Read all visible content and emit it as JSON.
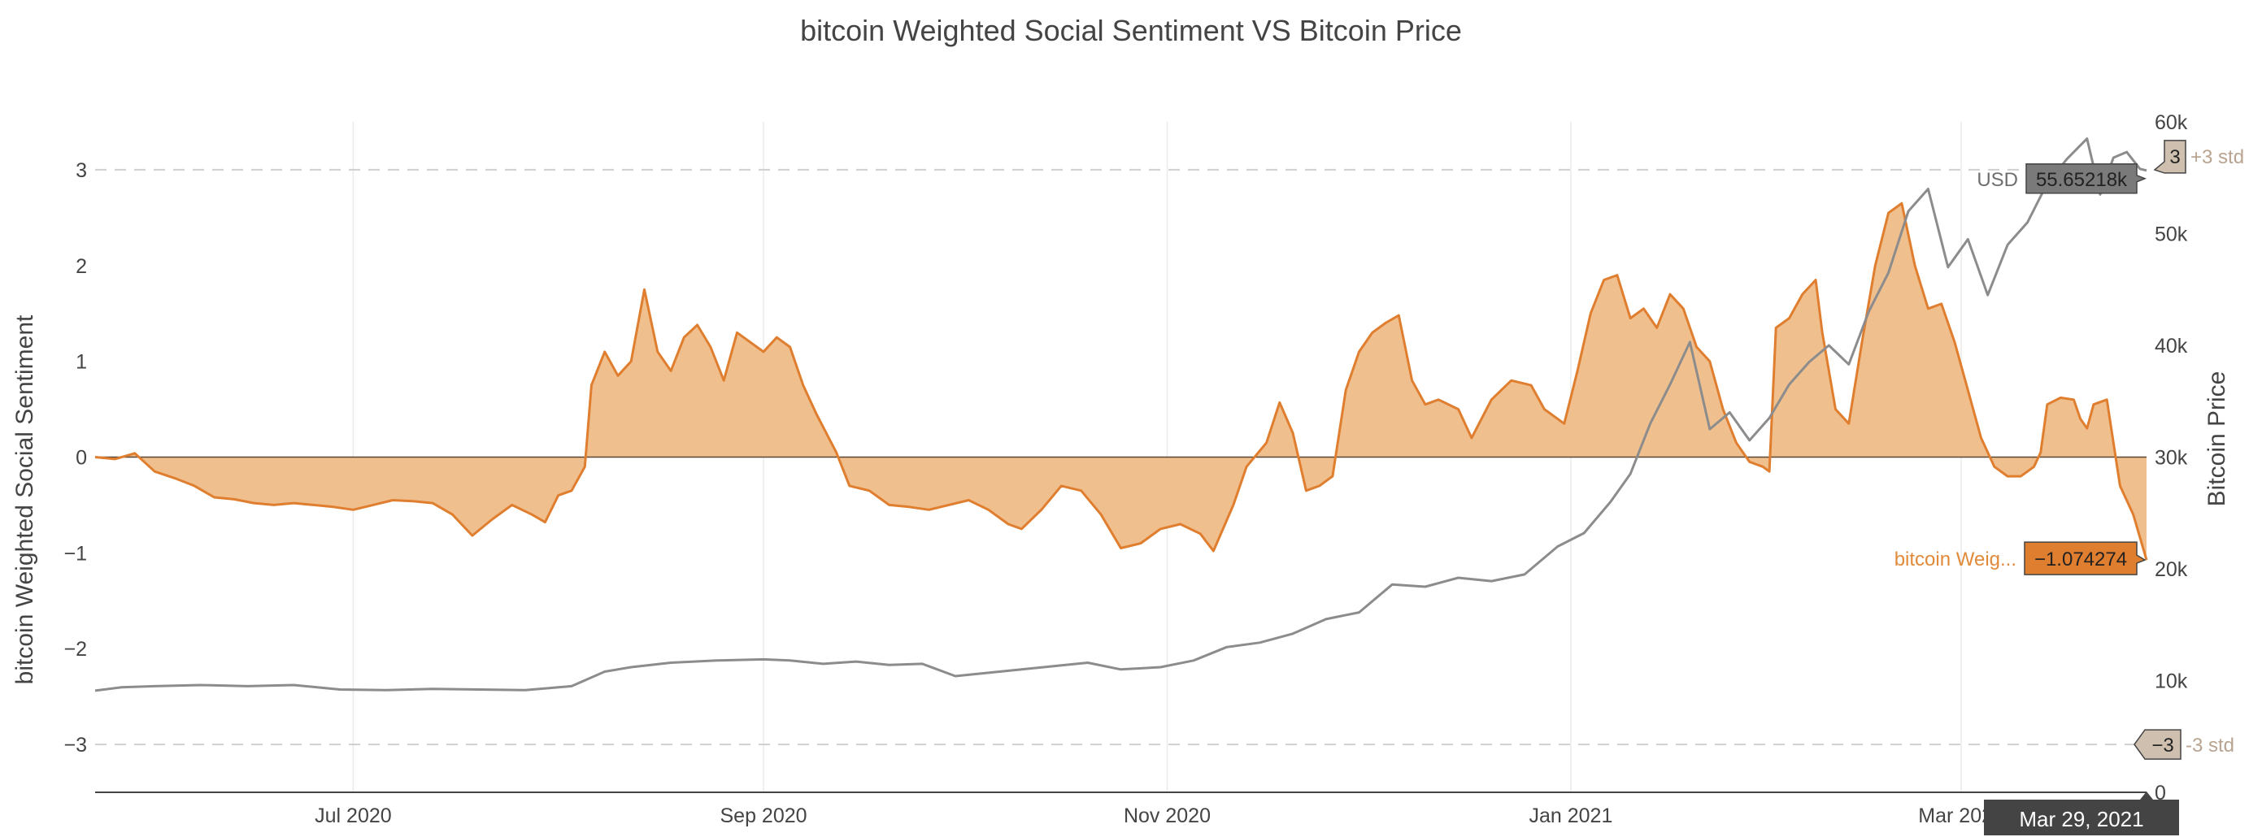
{
  "chart_data": {
    "type": "area",
    "title": "bitcoin Weighted Social Sentiment VS Bitcoin Price",
    "ylabel": "bitcoin Weighted Social Sentiment",
    "y2label": "Bitcoin Price",
    "ylim": [
      -3.5,
      3.5
    ],
    "y2lim": [
      0,
      60000
    ],
    "xrange": [
      "2020-05-23",
      "2021-03-29"
    ],
    "x_ticks": [
      {
        "date": "2020-07-01",
        "label": "Jul 2020"
      },
      {
        "date": "2020-09-01",
        "label": "Sep 2020"
      },
      {
        "date": "2020-11-01",
        "label": "Nov 2020"
      },
      {
        "date": "2021-01-01",
        "label": "Jan 2021"
      },
      {
        "date": "2021-03-01",
        "label": "Mar 2021"
      }
    ],
    "y_ticks": [
      {
        "value": 3,
        "label": "3"
      },
      {
        "value": 2,
        "label": "2"
      },
      {
        "value": 1,
        "label": "1"
      },
      {
        "value": 0,
        "label": "0"
      },
      {
        "value": -1,
        "label": "−1"
      },
      {
        "value": -2,
        "label": "−2"
      },
      {
        "value": -3,
        "label": "−3"
      }
    ],
    "y2_ticks": [
      {
        "value": 60000,
        "label": "60k"
      },
      {
        "value": 50000,
        "label": "50k"
      },
      {
        "value": 40000,
        "label": "40k"
      },
      {
        "value": 30000,
        "label": "30k"
      },
      {
        "value": 20000,
        "label": "20k"
      },
      {
        "value": 10000,
        "label": "10k"
      },
      {
        "value": 0,
        "label": "0"
      }
    ],
    "std_lines": [
      {
        "value": 3,
        "marker_label": "3",
        "side_label": "+3 std"
      },
      {
        "value": -3,
        "marker_label": "−3",
        "side_label": "-3 std"
      }
    ],
    "series": [
      {
        "name": "bitcoin Weighted Social Sentiment",
        "axis": "y",
        "color": "#e07e2f",
        "fill": "#f0bf8e",
        "points": [
          [
            "2020-05-23",
            0
          ],
          [
            "2020-05-26",
            -0.02
          ],
          [
            "2020-05-29",
            0.04
          ],
          [
            "2020-06-01",
            -0.15
          ],
          [
            "2020-06-04",
            -0.22
          ],
          [
            "2020-06-07",
            -0.3
          ],
          [
            "2020-06-10",
            -0.42
          ],
          [
            "2020-06-13",
            -0.44
          ],
          [
            "2020-06-16",
            -0.48
          ],
          [
            "2020-06-19",
            -0.5
          ],
          [
            "2020-06-22",
            -0.48
          ],
          [
            "2020-06-25",
            -0.5
          ],
          [
            "2020-06-28",
            -0.52
          ],
          [
            "2020-07-01",
            -0.55
          ],
          [
            "2020-07-04",
            -0.5
          ],
          [
            "2020-07-07",
            -0.45
          ],
          [
            "2020-07-10",
            -0.46
          ],
          [
            "2020-07-13",
            -0.48
          ],
          [
            "2020-07-16",
            -0.6
          ],
          [
            "2020-07-19",
            -0.82
          ],
          [
            "2020-07-22",
            -0.65
          ],
          [
            "2020-07-25",
            -0.5
          ],
          [
            "2020-07-28",
            -0.6
          ],
          [
            "2020-07-30",
            -0.68
          ],
          [
            "2020-08-01",
            -0.4
          ],
          [
            "2020-08-03",
            -0.35
          ],
          [
            "2020-08-05",
            -0.1
          ],
          [
            "2020-08-06",
            0.75
          ],
          [
            "2020-08-08",
            1.1
          ],
          [
            "2020-08-10",
            0.85
          ],
          [
            "2020-08-12",
            1.0
          ],
          [
            "2020-08-14",
            1.75
          ],
          [
            "2020-08-16",
            1.1
          ],
          [
            "2020-08-18",
            0.9
          ],
          [
            "2020-08-20",
            1.25
          ],
          [
            "2020-08-22",
            1.38
          ],
          [
            "2020-08-24",
            1.15
          ],
          [
            "2020-08-26",
            0.8
          ],
          [
            "2020-08-28",
            1.3
          ],
          [
            "2020-08-30",
            1.2
          ],
          [
            "2020-09-01",
            1.1
          ],
          [
            "2020-09-03",
            1.25
          ],
          [
            "2020-09-05",
            1.15
          ],
          [
            "2020-09-07",
            0.75
          ],
          [
            "2020-09-09",
            0.45
          ],
          [
            "2020-09-12",
            0.05
          ],
          [
            "2020-09-14",
            -0.3
          ],
          [
            "2020-09-17",
            -0.35
          ],
          [
            "2020-09-20",
            -0.5
          ],
          [
            "2020-09-23",
            -0.52
          ],
          [
            "2020-09-26",
            -0.55
          ],
          [
            "2020-09-29",
            -0.5
          ],
          [
            "2020-10-02",
            -0.45
          ],
          [
            "2020-10-05",
            -0.55
          ],
          [
            "2020-10-08",
            -0.7
          ],
          [
            "2020-10-10",
            -0.75
          ],
          [
            "2020-10-13",
            -0.55
          ],
          [
            "2020-10-16",
            -0.3
          ],
          [
            "2020-10-19",
            -0.35
          ],
          [
            "2020-10-22",
            -0.6
          ],
          [
            "2020-10-25",
            -0.95
          ],
          [
            "2020-10-28",
            -0.9
          ],
          [
            "2020-10-31",
            -0.75
          ],
          [
            "2020-11-03",
            -0.7
          ],
          [
            "2020-11-06",
            -0.8
          ],
          [
            "2020-11-08",
            -0.98
          ],
          [
            "2020-11-11",
            -0.5
          ],
          [
            "2020-11-13",
            -0.1
          ],
          [
            "2020-11-16",
            0.15
          ],
          [
            "2020-11-18",
            0.57
          ],
          [
            "2020-11-20",
            0.25
          ],
          [
            "2020-11-22",
            -0.35
          ],
          [
            "2020-11-24",
            -0.3
          ],
          [
            "2020-11-26",
            -0.2
          ],
          [
            "2020-11-28",
            0.7
          ],
          [
            "2020-11-30",
            1.1
          ],
          [
            "2020-12-02",
            1.3
          ],
          [
            "2020-12-04",
            1.4
          ],
          [
            "2020-12-06",
            1.48
          ],
          [
            "2020-12-08",
            0.8
          ],
          [
            "2020-12-10",
            0.55
          ],
          [
            "2020-12-12",
            0.6
          ],
          [
            "2020-12-15",
            0.5
          ],
          [
            "2020-12-17",
            0.2
          ],
          [
            "2020-12-20",
            0.6
          ],
          [
            "2020-12-23",
            0.8
          ],
          [
            "2020-12-26",
            0.75
          ],
          [
            "2020-12-28",
            0.5
          ],
          [
            "2020-12-31",
            0.35
          ],
          [
            "2021-01-02",
            0.9
          ],
          [
            "2021-01-04",
            1.5
          ],
          [
            "2021-01-06",
            1.85
          ],
          [
            "2021-01-08",
            1.9
          ],
          [
            "2021-01-10",
            1.45
          ],
          [
            "2021-01-12",
            1.55
          ],
          [
            "2021-01-14",
            1.35
          ],
          [
            "2021-01-16",
            1.7
          ],
          [
            "2021-01-18",
            1.55
          ],
          [
            "2021-01-20",
            1.15
          ],
          [
            "2021-01-22",
            1.0
          ],
          [
            "2021-01-24",
            0.5
          ],
          [
            "2021-01-26",
            0.15
          ],
          [
            "2021-01-28",
            -0.05
          ],
          [
            "2021-01-30",
            -0.1
          ],
          [
            "2021-01-31",
            -0.15
          ],
          [
            "2021-02-01",
            1.35
          ],
          [
            "2021-02-03",
            1.45
          ],
          [
            "2021-02-05",
            1.7
          ],
          [
            "2021-02-07",
            1.85
          ],
          [
            "2021-02-08",
            1.3
          ],
          [
            "2021-02-10",
            0.5
          ],
          [
            "2021-02-12",
            0.35
          ],
          [
            "2021-02-14",
            1.2
          ],
          [
            "2021-02-16",
            2.0
          ],
          [
            "2021-02-18",
            2.55
          ],
          [
            "2021-02-20",
            2.65
          ],
          [
            "2021-02-22",
            2.0
          ],
          [
            "2021-02-24",
            1.55
          ],
          [
            "2021-02-26",
            1.6
          ],
          [
            "2021-02-28",
            1.2
          ],
          [
            "2021-03-02",
            0.7
          ],
          [
            "2021-03-04",
            0.2
          ],
          [
            "2021-03-06",
            -0.1
          ],
          [
            "2021-03-08",
            -0.2
          ],
          [
            "2021-03-10",
            -0.2
          ],
          [
            "2021-03-12",
            -0.1
          ],
          [
            "2021-03-13",
            0.05
          ],
          [
            "2021-03-14",
            0.55
          ],
          [
            "2021-03-16",
            0.62
          ],
          [
            "2021-03-18",
            0.6
          ],
          [
            "2021-03-19",
            0.4
          ],
          [
            "2021-03-20",
            0.3
          ],
          [
            "2021-03-21",
            0.55
          ],
          [
            "2021-03-23",
            0.6
          ],
          [
            "2021-03-25",
            -0.3
          ],
          [
            "2021-03-27",
            -0.6
          ],
          [
            "2021-03-29",
            -1.074274
          ]
        ]
      },
      {
        "name": "USD",
        "axis": "y2",
        "color": "#8c8c8c",
        "points": [
          [
            "2020-05-23",
            9100
          ],
          [
            "2020-05-27",
            9400
          ],
          [
            "2020-06-01",
            9500
          ],
          [
            "2020-06-08",
            9600
          ],
          [
            "2020-06-15",
            9500
          ],
          [
            "2020-06-22",
            9600
          ],
          [
            "2020-06-29",
            9200
          ],
          [
            "2020-07-06",
            9150
          ],
          [
            "2020-07-13",
            9250
          ],
          [
            "2020-07-20",
            9200
          ],
          [
            "2020-07-27",
            9150
          ],
          [
            "2020-08-03",
            9500
          ],
          [
            "2020-08-08",
            10800
          ],
          [
            "2020-08-12",
            11200
          ],
          [
            "2020-08-18",
            11600
          ],
          [
            "2020-08-25",
            11800
          ],
          [
            "2020-09-01",
            11900
          ],
          [
            "2020-09-05",
            11800
          ],
          [
            "2020-09-10",
            11500
          ],
          [
            "2020-09-15",
            11700
          ],
          [
            "2020-09-20",
            11400
          ],
          [
            "2020-09-25",
            11500
          ],
          [
            "2020-09-30",
            10400
          ],
          [
            "2020-10-05",
            10700
          ],
          [
            "2020-10-10",
            11000
          ],
          [
            "2020-10-15",
            11300
          ],
          [
            "2020-10-20",
            11600
          ],
          [
            "2020-10-25",
            11000
          ],
          [
            "2020-10-31",
            11200
          ],
          [
            "2020-11-05",
            11800
          ],
          [
            "2020-11-10",
            13000
          ],
          [
            "2020-11-15",
            13400
          ],
          [
            "2020-11-20",
            14200
          ],
          [
            "2020-11-25",
            15500
          ],
          [
            "2020-11-30",
            16100
          ],
          [
            "2020-12-05",
            18600
          ],
          [
            "2020-12-10",
            18400
          ],
          [
            "2020-12-15",
            19200
          ],
          [
            "2020-12-20",
            18900
          ],
          [
            "2020-12-25",
            19500
          ],
          [
            "2020-12-30",
            22000
          ],
          [
            "2021-01-03",
            23200
          ],
          [
            "2021-01-07",
            26000
          ],
          [
            "2021-01-10",
            28500
          ],
          [
            "2021-01-13",
            33000
          ],
          [
            "2021-01-16",
            36500
          ],
          [
            "2021-01-19",
            40300
          ],
          [
            "2021-01-22",
            32500
          ],
          [
            "2021-01-25",
            34000
          ],
          [
            "2021-01-28",
            31500
          ],
          [
            "2021-01-31",
            33500
          ],
          [
            "2021-02-03",
            36500
          ],
          [
            "2021-02-06",
            38500
          ],
          [
            "2021-02-09",
            40000
          ],
          [
            "2021-02-12",
            38300
          ],
          [
            "2021-02-15",
            43000
          ],
          [
            "2021-02-18",
            46500
          ],
          [
            "2021-02-21",
            52000
          ],
          [
            "2021-02-24",
            54000
          ],
          [
            "2021-02-27",
            47000
          ],
          [
            "2021-03-02",
            49500
          ],
          [
            "2021-03-05",
            44500
          ],
          [
            "2021-03-08",
            49000
          ],
          [
            "2021-03-11",
            51000
          ],
          [
            "2021-03-14",
            54500
          ],
          [
            "2021-03-17",
            56700
          ],
          [
            "2021-03-20",
            58500
          ],
          [
            "2021-03-22",
            53500
          ],
          [
            "2021-03-24",
            56800
          ],
          [
            "2021-03-26",
            57300
          ],
          [
            "2021-03-28",
            55800
          ],
          [
            "2021-03-29",
            55652
          ]
        ]
      }
    ],
    "hover": {
      "date_label": "Mar 29, 2021",
      "usd_prefix": "USD",
      "usd_value": "55.65218k",
      "sentiment_prefix": "bitcoin Weig...",
      "sentiment_value": "−1.074274"
    }
  }
}
